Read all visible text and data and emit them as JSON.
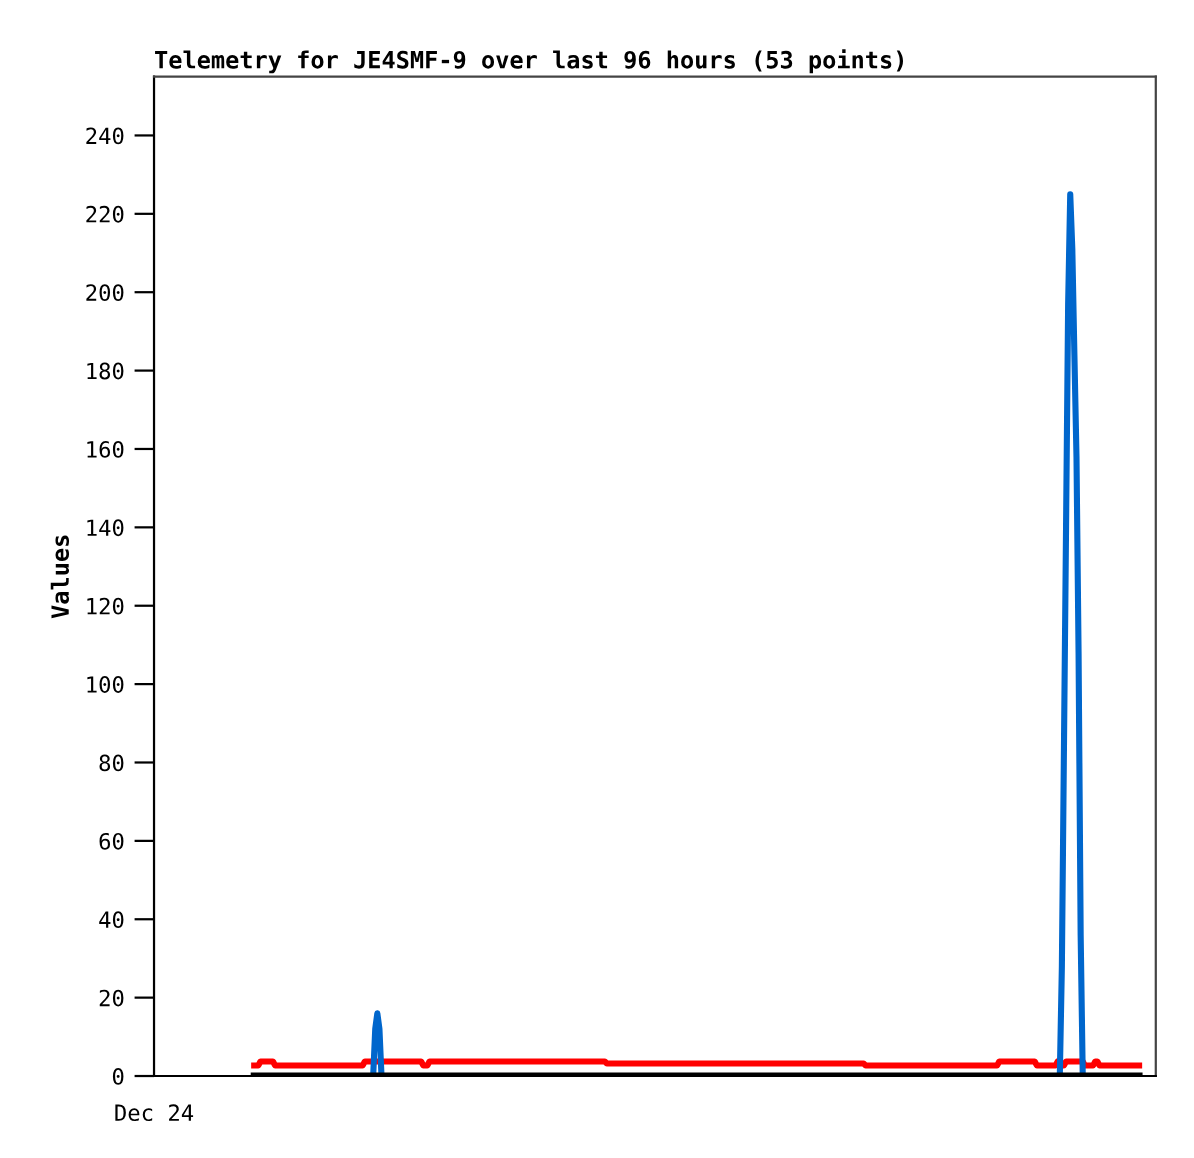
{
  "chart_data": {
    "type": "line",
    "title": "Telemetry for JE4SMF-9 over last 96 hours (53 points)",
    "ylabel": "Values",
    "ylim": [
      0,
      255
    ],
    "yticks": [
      0,
      20,
      40,
      60,
      80,
      100,
      120,
      140,
      160,
      180,
      200,
      220,
      240
    ],
    "grid": false,
    "legend": false,
    "marker": "none",
    "line_style": "solid",
    "categories": [
      "Dec 24",
      null,
      null,
      null,
      null,
      null,
      null,
      null,
      null,
      null,
      null,
      null,
      null,
      null,
      null,
      null,
      null,
      null,
      null,
      null,
      null,
      null,
      null,
      null,
      null,
      null,
      null,
      null,
      null,
      null,
      null,
      null,
      null,
      null,
      null,
      null,
      null,
      null,
      null,
      null,
      null,
      null,
      null,
      null,
      null,
      null,
      null,
      null,
      null,
      null,
      null,
      null,
      null,
      null,
      null,
      null,
      null,
      null,
      null,
      null,
      null,
      null,
      null,
      null,
      null,
      null,
      null,
      null,
      null,
      null,
      null,
      null,
      null,
      null,
      null,
      null,
      null,
      null,
      null,
      null,
      null,
      null,
      null,
      null,
      null,
      null,
      null,
      null,
      null,
      null,
      null,
      null,
      null,
      null,
      null,
      null,
      null,
      null,
      null,
      null,
      null,
      null,
      null,
      null,
      null,
      null,
      null,
      null,
      null,
      null,
      null,
      null,
      null,
      null,
      null,
      null,
      null,
      null,
      null,
      null,
      null,
      null,
      null,
      null,
      null,
      null,
      null,
      null,
      null,
      null,
      null,
      null,
      null,
      null,
      null,
      null,
      null,
      null,
      null,
      null,
      null,
      null,
      null,
      null,
      null,
      null,
      null,
      null,
      null,
      null,
      null,
      null,
      null,
      null,
      null,
      null,
      null,
      null,
      null,
      null,
      null,
      null,
      null,
      null,
      null,
      null,
      null,
      null,
      null,
      null,
      null,
      null,
      null,
      null,
      null,
      null,
      null,
      null,
      null,
      null,
      null,
      null,
      null,
      null,
      null,
      null,
      null,
      null,
      null,
      null,
      null,
      null,
      null,
      null,
      null,
      null,
      null,
      null,
      null,
      null,
      null,
      null,
      null,
      null,
      null,
      null,
      null,
      null,
      null,
      null,
      null,
      null,
      null,
      null,
      null,
      null,
      null,
      null,
      null,
      null,
      null,
      null,
      null,
      null,
      null,
      null,
      null,
      null,
      null,
      null,
      null,
      null,
      null,
      null,
      null,
      null,
      null,
      null,
      null,
      null,
      null,
      null,
      null,
      null,
      null,
      null,
      null,
      null,
      null,
      null,
      null,
      null,
      null,
      null,
      null,
      null,
      null,
      null,
      null,
      null,
      null,
      null,
      null,
      null,
      null,
      null,
      null,
      null,
      null,
      null,
      null,
      null,
      null,
      null,
      null,
      null,
      null,
      null,
      null,
      null,
      null,
      null,
      null,
      null,
      null,
      null,
      null,
      null,
      null,
      null,
      null,
      null,
      null,
      null,
      null,
      null,
      null,
      null,
      null,
      null,
      null,
      null,
      null,
      null,
      null,
      null,
      null,
      null,
      null,
      null,
      null,
      null,
      null,
      null,
      null,
      null,
      null,
      null,
      null,
      null,
      null,
      null,
      null,
      null,
      null,
      null,
      null,
      null,
      null,
      null,
      null,
      null,
      null,
      null,
      null,
      null,
      null,
      null,
      null,
      null,
      null,
      null,
      null,
      null,
      null,
      null,
      null,
      null,
      null,
      null,
      null,
      null,
      null,
      null,
      null,
      null,
      null,
      null,
      null,
      null,
      null,
      null,
      null,
      null,
      null,
      null,
      null,
      null,
      null,
      null,
      null,
      null,
      null,
      null,
      null,
      null,
      null,
      null,
      null,
      null,
      null,
      null,
      null,
      null,
      null,
      null,
      null,
      null,
      null,
      null,
      null,
      null,
      null,
      null,
      null,
      null,
      null,
      null,
      null,
      null,
      null,
      null,
      null,
      null,
      null,
      null,
      null,
      null,
      null,
      null,
      null,
      null,
      null,
      null,
      null,
      null,
      null,
      null,
      null,
      null,
      null,
      null,
      null,
      null,
      null,
      null,
      null,
      null,
      null,
      null,
      null,
      null,
      null,
      null,
      null,
      null,
      null,
      null,
      null,
      null,
      null,
      null,
      null,
      null,
      null,
      null,
      null,
      null,
      null,
      null,
      null,
      null,
      null,
      null,
      null,
      null,
      null,
      null,
      null,
      null,
      null,
      null,
      null,
      null,
      null,
      null,
      null,
      null,
      null,
      null,
      null,
      null,
      null,
      null,
      null,
      null,
      null,
      null,
      null,
      null,
      null
    ],
    "series": [
      {
        "color": "#ff0000",
        "values": [
          null,
          null,
          null,
          null,
          null,
          null,
          null,
          null,
          null,
          null,
          null,
          null,
          null,
          null,
          null,
          null,
          null,
          null,
          null,
          null,
          null,
          null,
          null,
          null,
          null,
          null,
          null,
          null,
          null,
          null,
          null,
          null,
          null,
          null,
          null,
          null,
          null,
          null,
          null,
          null,
          null,
          null,
          null,
          null,
          null,
          null,
          null,
          null,
          2.7,
          2.7,
          2.7,
          3.7,
          3.7,
          3.7,
          3.7,
          3.7,
          3.7,
          3.7,
          2.7,
          2.7,
          2.7,
          2.7,
          2.7,
          2.7,
          2.7,
          2.7,
          2.7,
          2.7,
          2.7,
          2.7,
          2.7,
          2.7,
          2.7,
          2.7,
          2.7,
          2.7,
          2.7,
          2.7,
          2.7,
          2.7,
          2.7,
          2.7,
          2.7,
          2.7,
          2.7,
          2.7,
          2.7,
          2.7,
          2.7,
          2.7,
          2.7,
          2.7,
          2.7,
          2.7,
          2.7,
          2.7,
          2.7,
          2.7,
          2.7,
          2.7,
          2.7,
          3.7,
          3.7,
          3.7,
          3.7,
          3.7,
          3.7,
          3.7,
          3.7,
          3.7,
          3.7,
          3.7,
          3.7,
          3.7,
          3.7,
          3.7,
          3.7,
          3.7,
          3.7,
          3.7,
          3.7,
          3.7,
          3.7,
          3.7,
          3.7,
          3.7,
          3.7,
          3.7,
          3.7,
          2.7,
          2.7,
          2.7,
          3.7,
          3.7,
          3.7,
          3.7,
          3.7,
          3.7,
          3.7,
          3.7,
          3.7,
          3.7,
          3.7,
          3.7,
          3.7,
          3.7,
          3.7,
          3.7,
          3.7,
          3.7,
          3.7,
          3.7,
          3.7,
          3.7,
          3.7,
          3.7,
          3.7,
          3.7,
          3.7,
          3.7,
          3.7,
          3.7,
          3.7,
          3.7,
          3.7,
          3.7,
          3.7,
          3.7,
          3.7,
          3.7,
          3.7,
          3.7,
          3.7,
          3.7,
          3.7,
          3.7,
          3.7,
          3.7,
          3.7,
          3.7,
          3.7,
          3.7,
          3.7,
          3.7,
          3.7,
          3.7,
          3.7,
          3.7,
          3.7,
          3.7,
          3.7,
          3.7,
          3.7,
          3.7,
          3.7,
          3.7,
          3.7,
          3.7,
          3.7,
          3.7,
          3.7,
          3.7,
          3.7,
          3.7,
          3.7,
          3.7,
          3.7,
          3.7,
          3.7,
          3.7,
          3.7,
          3.7,
          3.7,
          3.7,
          3.7,
          3.7,
          3.7,
          3.2,
          3.2,
          3.2,
          3.2,
          3.2,
          3.2,
          3.2,
          3.2,
          3.2,
          3.2,
          3.2,
          3.2,
          3.2,
          3.2,
          3.2,
          3.2,
          3.2,
          3.2,
          3.2,
          3.2,
          3.2,
          3.2,
          3.2,
          3.2,
          3.2,
          3.2,
          3.2,
          3.2,
          3.2,
          3.2,
          3.2,
          3.2,
          3.2,
          3.2,
          3.2,
          3.2,
          3.2,
          3.2,
          3.2,
          3.2,
          3.2,
          3.2,
          3.2,
          3.2,
          3.2,
          3.2,
          3.2,
          3.2,
          3.2,
          3.2,
          3.2,
          3.2,
          3.2,
          3.2,
          3.2,
          3.2,
          3.2,
          3.2,
          3.2,
          3.2,
          3.2,
          3.2,
          3.2,
          3.2,
          3.2,
          3.2,
          3.2,
          3.2,
          3.2,
          3.2,
          3.2,
          3.2,
          3.2,
          3.2,
          3.2,
          3.2,
          3.2,
          3.2,
          3.2,
          3.2,
          3.2,
          3.2,
          3.2,
          3.2,
          3.2,
          3.2,
          3.2,
          3.2,
          3.2,
          3.2,
          3.2,
          3.2,
          3.2,
          3.2,
          3.2,
          3.2,
          3.2,
          3.2,
          3.2,
          3.2,
          3.2,
          3.2,
          3.2,
          3.2,
          3.2,
          3.2,
          3.2,
          3.2,
          3.2,
          3.2,
          3.2,
          3.2,
          3.2,
          3.2,
          3.2,
          3.2,
          3.2,
          3.2,
          3.2,
          3.2,
          3.2,
          3.2,
          3.2,
          3.2,
          2.7,
          2.7,
          2.7,
          2.7,
          2.7,
          2.7,
          2.7,
          2.7,
          2.7,
          2.7,
          2.7,
          2.7,
          2.7,
          2.7,
          2.7,
          2.7,
          2.7,
          2.7,
          2.7,
          2.7,
          2.7,
          2.7,
          2.7,
          2.7,
          2.7,
          2.7,
          2.7,
          2.7,
          2.7,
          2.7,
          2.7,
          2.7,
          2.7,
          2.7,
          2.7,
          2.7,
          2.7,
          2.7,
          2.7,
          2.7,
          2.7,
          2.7,
          2.7,
          2.7,
          2.7,
          2.7,
          2.7,
          2.7,
          2.7,
          2.7,
          2.7,
          2.7,
          2.7,
          2.7,
          2.7,
          2.7,
          2.7,
          2.7,
          2.7,
          2.7,
          2.7,
          2.7,
          2.7,
          2.7,
          3.7,
          3.7,
          3.7,
          3.7,
          3.7,
          3.7,
          3.7,
          3.7,
          3.7,
          3.7,
          3.7,
          3.7,
          3.7,
          3.7,
          3.7,
          3.7,
          3.7,
          3.7,
          2.7,
          2.7,
          2.7,
          2.7,
          2.7,
          2.7,
          2.7,
          2.7,
          2.7,
          2.7,
          3.7,
          2.7,
          2.7,
          2.7,
          3.7,
          3.7,
          3.7,
          3.7,
          3.7,
          3.7,
          3.7,
          3.7,
          3.7,
          2.7,
          2.7,
          2.7,
          2.7,
          2.7,
          3.7,
          3.7,
          2.7,
          2.7,
          2.7,
          2.7,
          2.7,
          2.7,
          2.7,
          2.7,
          2.7,
          2.7,
          2.7,
          2.7,
          2.7,
          2.7,
          2.7,
          2.7,
          2.7,
          2.7,
          2.7,
          2.7,
          null,
          null,
          null,
          null,
          null,
          null,
          null,
          null
        ]
      },
      {
        "color": "#0066cc",
        "values": [
          null,
          null,
          null,
          null,
          null,
          null,
          null,
          null,
          null,
          null,
          null,
          null,
          null,
          null,
          null,
          null,
          null,
          null,
          null,
          null,
          null,
          null,
          null,
          null,
          null,
          null,
          null,
          null,
          null,
          null,
          null,
          null,
          null,
          null,
          null,
          null,
          null,
          null,
          null,
          null,
          null,
          null,
          null,
          null,
          null,
          null,
          null,
          null,
          null,
          null,
          null,
          null,
          null,
          null,
          null,
          null,
          null,
          null,
          null,
          null,
          null,
          null,
          null,
          null,
          null,
          null,
          null,
          null,
          null,
          null,
          null,
          null,
          null,
          null,
          null,
          null,
          null,
          null,
          null,
          null,
          null,
          null,
          null,
          null,
          null,
          null,
          null,
          null,
          null,
          null,
          null,
          null,
          null,
          null,
          null,
          null,
          null,
          null,
          null,
          null,
          null,
          null,
          null,
          null,
          null,
          0,
          12,
          16,
          12,
          0,
          null,
          null,
          null,
          null,
          null,
          null,
          null,
          null,
          null,
          null,
          null,
          null,
          null,
          null,
          null,
          null,
          null,
          null,
          null,
          null,
          null,
          null,
          null,
          null,
          null,
          null,
          null,
          null,
          null,
          null,
          null,
          null,
          null,
          null,
          null,
          null,
          null,
          null,
          null,
          null,
          null,
          null,
          null,
          null,
          null,
          null,
          null,
          null,
          null,
          null,
          null,
          null,
          null,
          null,
          null,
          null,
          null,
          null,
          null,
          null,
          null,
          null,
          null,
          null,
          null,
          null,
          null,
          null,
          null,
          null,
          null,
          null,
          null,
          null,
          null,
          null,
          null,
          null,
          null,
          null,
          null,
          null,
          null,
          null,
          null,
          null,
          null,
          null,
          null,
          null,
          null,
          null,
          null,
          null,
          null,
          null,
          null,
          null,
          null,
          null,
          null,
          null,
          null,
          null,
          null,
          null,
          null,
          null,
          null,
          null,
          null,
          null,
          null,
          null,
          null,
          null,
          null,
          null,
          null,
          null,
          null,
          null,
          null,
          null,
          null,
          null,
          null,
          null,
          null,
          null,
          null,
          null,
          null,
          null,
          null,
          null,
          null,
          null,
          null,
          null,
          null,
          null,
          null,
          null,
          null,
          null,
          null,
          null,
          null,
          null,
          null,
          null,
          null,
          null,
          null,
          null,
          null,
          null,
          null,
          null,
          null,
          null,
          null,
          null,
          null,
          null,
          null,
          null,
          null,
          null,
          null,
          null,
          null,
          null,
          null,
          null,
          null,
          null,
          null,
          null,
          null,
          null,
          null,
          null,
          null,
          null,
          null,
          null,
          null,
          null,
          null,
          null,
          null,
          null,
          null,
          null,
          null,
          null,
          null,
          null,
          null,
          null,
          null,
          null,
          null,
          null,
          null,
          null,
          null,
          null,
          null,
          null,
          null,
          null,
          null,
          null,
          null,
          null,
          null,
          null,
          null,
          null,
          null,
          null,
          null,
          null,
          null,
          null,
          null,
          null,
          null,
          null,
          null,
          null,
          null,
          null,
          null,
          null,
          null,
          null,
          null,
          null,
          null,
          null,
          null,
          null,
          null,
          null,
          null,
          null,
          null,
          null,
          null,
          null,
          null,
          null,
          null,
          null,
          null,
          null,
          null,
          null,
          null,
          null,
          null,
          null,
          null,
          null,
          null,
          null,
          null,
          null,
          null,
          null,
          null,
          null,
          null,
          null,
          null,
          null,
          null,
          null,
          null,
          null,
          null,
          null,
          null,
          null,
          null,
          null,
          null,
          null,
          null,
          null,
          null,
          null,
          null,
          null,
          null,
          null,
          null,
          null,
          null,
          null,
          null,
          null,
          null,
          null,
          null,
          null,
          null,
          null,
          null,
          null,
          null,
          null,
          null,
          null,
          null,
          null,
          null,
          null,
          null,
          null,
          0,
          28,
          84,
          140,
          197,
          225,
          211,
          184,
          158,
          108,
          36,
          0,
          null,
          null,
          null,
          null,
          null,
          null,
          null,
          null,
          null,
          null,
          null,
          null,
          null,
          null,
          null,
          null,
          null,
          null,
          null,
          null,
          null,
          null,
          null,
          null,
          null,
          null,
          null,
          null,
          null,
          null,
          null,
          null,
          null,
          null,
          null
        ]
      },
      {
        "color": "#000000",
        "values": [
          null,
          null,
          null,
          null,
          null,
          null,
          null,
          null,
          null,
          null,
          null,
          null,
          null,
          null,
          null,
          null,
          null,
          null,
          null,
          null,
          null,
          null,
          null,
          null,
          null,
          null,
          null,
          null,
          null,
          null,
          null,
          null,
          null,
          null,
          null,
          null,
          null,
          null,
          null,
          null,
          null,
          null,
          null,
          null,
          null,
          null,
          null,
          null,
          0,
          0,
          0,
          0,
          0,
          0,
          0,
          0,
          0,
          0,
          0,
          0,
          0,
          0,
          0,
          0,
          0,
          0,
          0,
          0,
          0,
          0,
          0,
          0,
          0,
          0,
          0,
          0,
          0,
          0,
          0,
          0,
          0,
          0,
          0,
          0,
          0,
          0,
          0,
          0,
          0,
          0,
          0,
          0,
          0,
          0,
          0,
          0,
          0,
          0,
          0,
          0,
          0,
          0,
          0,
          0,
          0,
          0,
          0,
          0,
          0,
          0,
          0,
          0,
          0,
          0,
          0,
          0,
          0,
          0,
          0,
          0,
          0,
          0,
          0,
          0,
          0,
          0,
          0,
          0,
          0,
          0,
          0,
          0,
          0,
          0,
          0,
          0,
          0,
          0,
          0,
          0,
          0,
          0,
          0,
          0,
          0,
          0,
          0,
          0,
          0,
          0,
          0,
          0,
          0,
          0,
          0,
          0,
          0,
          0,
          0,
          0,
          0,
          0,
          0,
          0,
          0,
          0,
          0,
          0,
          0,
          0,
          0,
          0,
          0,
          0,
          0,
          0,
          0,
          0,
          0,
          0,
          0,
          0,
          0,
          0,
          0,
          0,
          0,
          0,
          0,
          0,
          0,
          0,
          0,
          0,
          0,
          0,
          0,
          0,
          0,
          0,
          0,
          0,
          0,
          0,
          0,
          0,
          0,
          0,
          0,
          0,
          0,
          0,
          0,
          0,
          0,
          0,
          0,
          0,
          0,
          0,
          0,
          0,
          0,
          0,
          0,
          0,
          0,
          0,
          0,
          0,
          0,
          0,
          0,
          0,
          0,
          0,
          0,
          0,
          0,
          0,
          0,
          0,
          0,
          0,
          0,
          0,
          0,
          0,
          0,
          0,
          0,
          0,
          0,
          0,
          0,
          0,
          0,
          0,
          0,
          0,
          0,
          0,
          0,
          0,
          0,
          0,
          0,
          0,
          0,
          0,
          0,
          0,
          0,
          0,
          0,
          0,
          0,
          0,
          0,
          0,
          0,
          0,
          0,
          0,
          0,
          0,
          0,
          0,
          0,
          0,
          0,
          0,
          0,
          0,
          0,
          0,
          0,
          0,
          0,
          0,
          0,
          0,
          0,
          0,
          0,
          0,
          0,
          0,
          0,
          0,
          0,
          0,
          0,
          0,
          0,
          0,
          0,
          0,
          0,
          0,
          0,
          0,
          0,
          0,
          0,
          0,
          0,
          0,
          0,
          0,
          0,
          0,
          0,
          0,
          0,
          0,
          0,
          0,
          0,
          0,
          0,
          0,
          0,
          0,
          0,
          0,
          0,
          0,
          0,
          0,
          0,
          0,
          0,
          0,
          0,
          0,
          0,
          0,
          0,
          0,
          0,
          0,
          0,
          0,
          0,
          0,
          0,
          0,
          0,
          0,
          0,
          0,
          0,
          0,
          0,
          0,
          0,
          0,
          0,
          0,
          0,
          0,
          0,
          0,
          0,
          0,
          0,
          0,
          0,
          0,
          0,
          0,
          0,
          0,
          0,
          0,
          0,
          0,
          0,
          0,
          0,
          0,
          0,
          0,
          0,
          0,
          0,
          0,
          0,
          0,
          0,
          0,
          0,
          0,
          0,
          0,
          0,
          0,
          0,
          0,
          0,
          0,
          0,
          0,
          0,
          0,
          0,
          0,
          0,
          0,
          0,
          0,
          0,
          0,
          0,
          0,
          0,
          0,
          0,
          0,
          0,
          0,
          0,
          0,
          0,
          0,
          0,
          0,
          0,
          0,
          0,
          0,
          0,
          0,
          0,
          0,
          0,
          0,
          0,
          0,
          0,
          0,
          0,
          0,
          0,
          0,
          0,
          0,
          0,
          0,
          0,
          0,
          0,
          null,
          null,
          null,
          null,
          null,
          null,
          null,
          null
        ]
      }
    ]
  }
}
